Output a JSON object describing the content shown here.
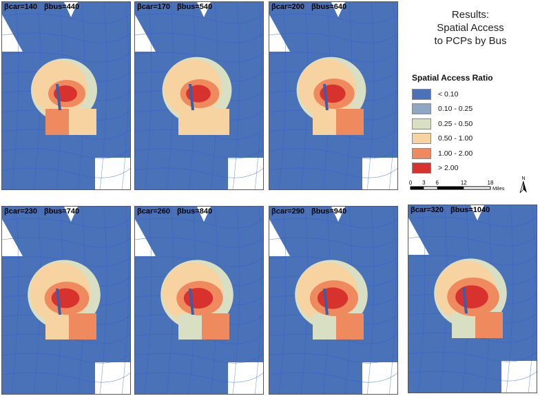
{
  "title": {
    "line1": "Results:",
    "line2": "Spatial Access",
    "line3": "to PCPs by Bus"
  },
  "legend": {
    "title": "Spatial Access Ratio",
    "items": [
      {
        "label": "< 0.10",
        "color": "#4a72b8"
      },
      {
        "label": "0.10 - 0.25",
        "color": "#8fa7c4"
      },
      {
        "label": "0.25 - 0.50",
        "color": "#d9dfc2"
      },
      {
        "label": "0.50 - 1.00",
        "color": "#f7d3a1"
      },
      {
        "label": "1.00 - 2.00",
        "color": "#ef8a5e"
      },
      {
        "label": "> 2.00",
        "color": "#d7322e"
      }
    ]
  },
  "scalebar": {
    "ticks": [
      "0",
      "3",
      "6",
      "12",
      "18"
    ],
    "unit": "Miles"
  },
  "north_label": "N",
  "panels": [
    {
      "car": "βcar=140",
      "bus": "βbus=440"
    },
    {
      "car": "βcar=170",
      "bus": "βbus=540"
    },
    {
      "car": "βcar=200",
      "bus": "βbus=640"
    },
    {
      "car": "βcar=230",
      "bus": "βbus=740"
    },
    {
      "car": "βcar=260",
      "bus": "βbus=840"
    },
    {
      "car": "βcar=290",
      "bus": "βbus=940"
    },
    {
      "car": "βcar=320",
      "bus": "βbus=1040"
    }
  ],
  "colors": {
    "background": "#4a72b8",
    "boundary": "#2f5bd3"
  }
}
